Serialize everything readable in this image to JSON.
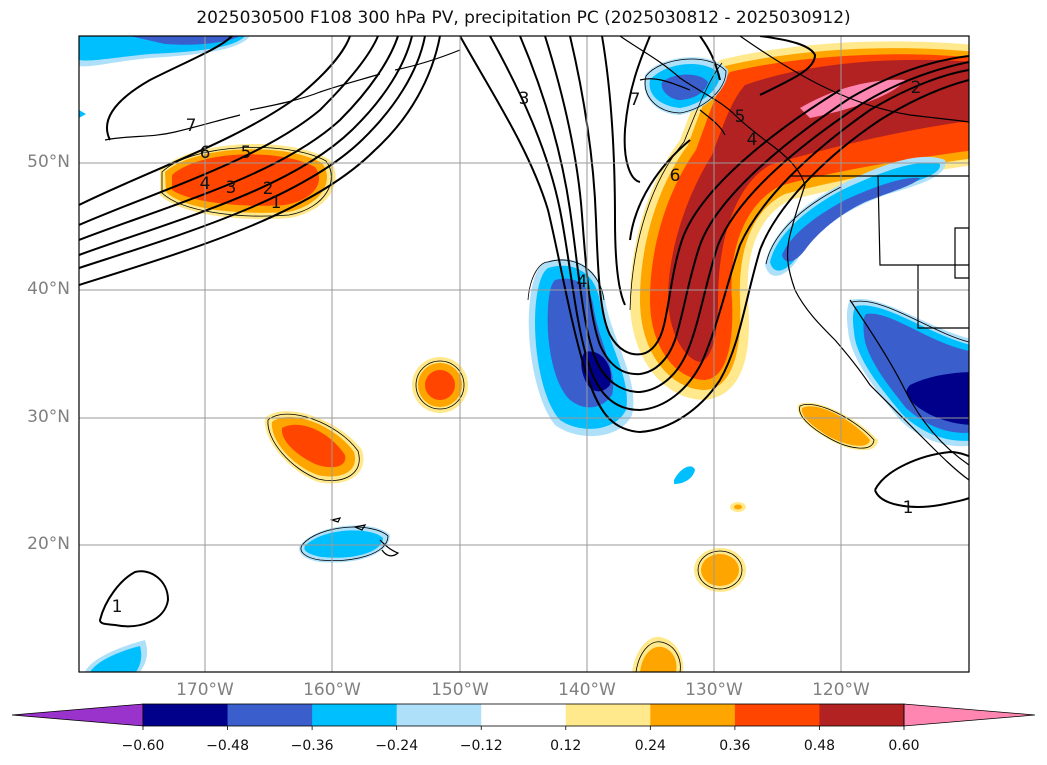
{
  "title": "2025030500 F108 300 hPa PV, precipitation PC (2025030812 - 2025030912)",
  "lat_labels": [
    "50°N",
    "40°N",
    "30°N",
    "20°N"
  ],
  "lon_labels": [
    "170°W",
    "160°W",
    "150°W",
    "140°W",
    "130°W",
    "120°W"
  ],
  "colorbar": {
    "colors": [
      "#9a33cc",
      "#00008b",
      "#3a5fcd",
      "#00bfff",
      "#afe0fa",
      "#ffffff",
      "#ffe98c",
      "#ffa500",
      "#ff4500",
      "#b22222",
      "#ff86b0"
    ],
    "labels": [
      "−0.60",
      "−0.48",
      "−0.36",
      "−0.24",
      "−0.12",
      "0.12",
      "0.24",
      "0.36",
      "0.48",
      "0.60"
    ]
  },
  "contour_labels": [
    {
      "text": "1"
    },
    {
      "text": "2"
    },
    {
      "text": "3"
    },
    {
      "text": "4"
    },
    {
      "text": "5"
    },
    {
      "text": "6"
    },
    {
      "text": "7"
    },
    {
      "text": "3"
    },
    {
      "text": "7"
    },
    {
      "text": "6"
    },
    {
      "text": "5"
    },
    {
      "text": "4"
    },
    {
      "text": "2"
    },
    {
      "text": "1"
    },
    {
      "text": "1"
    },
    {
      "text": "4"
    }
  ]
}
